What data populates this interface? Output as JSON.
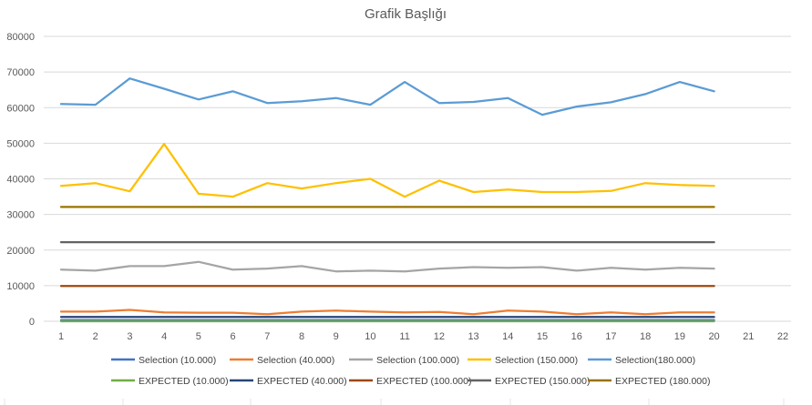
{
  "chart_data": {
    "type": "line",
    "title": "Grafik Başlığı",
    "xlabel": "",
    "ylabel": "",
    "x": [
      1,
      2,
      3,
      4,
      5,
      6,
      7,
      8,
      9,
      10,
      11,
      12,
      13,
      14,
      15,
      16,
      17,
      18,
      19,
      20
    ],
    "x_ticks": [
      1,
      2,
      3,
      4,
      5,
      6,
      7,
      8,
      9,
      10,
      11,
      12,
      13,
      14,
      15,
      16,
      17,
      18,
      19,
      20,
      21,
      22
    ],
    "xlim": [
      1,
      22
    ],
    "ylim": [
      0,
      80000
    ],
    "y_ticks": [
      0,
      10000,
      20000,
      30000,
      40000,
      50000,
      60000,
      70000,
      80000
    ],
    "grid": true,
    "legend_position": "bottom",
    "series": [
      {
        "name": "Selection (10.000)",
        "color": "#4472C4",
        "values": [
          300,
          300,
          300,
          300,
          300,
          300,
          300,
          300,
          300,
          300,
          300,
          300,
          300,
          300,
          300,
          300,
          300,
          300,
          300,
          300
        ]
      },
      {
        "name": "Selection (40.000)",
        "color": "#ED7D31",
        "values": [
          2700,
          2700,
          3200,
          2500,
          2400,
          2400,
          2000,
          2700,
          3000,
          2700,
          2500,
          2600,
          2000,
          3000,
          2700,
          2000,
          2500,
          2000,
          2500,
          2500
        ]
      },
      {
        "name": "Selection (100.000)",
        "color": "#A5A5A5",
        "values": [
          14500,
          14200,
          15500,
          15500,
          16700,
          14500,
          14800,
          15500,
          14000,
          14200,
          14000,
          14800,
          15200,
          15000,
          15200,
          14200,
          15000,
          14500,
          15000,
          14800
        ]
      },
      {
        "name": "Selection (150.000)",
        "color": "#FFC000",
        "values": [
          38000,
          38800,
          36500,
          49800,
          35800,
          35000,
          38800,
          37300,
          38800,
          40000,
          35000,
          39500,
          36300,
          37000,
          36300,
          36300,
          36600,
          38800,
          38300,
          38000
        ]
      },
      {
        "name": "Selection(180.000)",
        "color": "#5B9BD5",
        "values": [
          61000,
          60800,
          68200,
          65300,
          62300,
          64600,
          61300,
          61800,
          62700,
          60800,
          67200,
          61300,
          61600,
          62700,
          58000,
          60300,
          61500,
          63800,
          67200,
          64600
        ]
      },
      {
        "name": "EXPECTED (10.000)",
        "color": "#70AD47",
        "values": [
          0,
          0,
          0,
          0,
          0,
          0,
          0,
          0,
          0,
          0,
          0,
          0,
          0,
          0,
          0,
          0,
          0,
          0,
          0,
          0
        ]
      },
      {
        "name": "EXPECTED (40.000)",
        "color": "#264478",
        "values": [
          1200,
          1200,
          1200,
          1200,
          1200,
          1200,
          1200,
          1200,
          1200,
          1200,
          1200,
          1200,
          1200,
          1200,
          1200,
          1200,
          1200,
          1200,
          1200,
          1200
        ]
      },
      {
        "name": "EXPECTED (100.000)",
        "color": "#9E480E",
        "values": [
          9900,
          9900,
          9900,
          9900,
          9900,
          9900,
          9900,
          9900,
          9900,
          9900,
          9900,
          9900,
          9900,
          9900,
          9900,
          9900,
          9900,
          9900,
          9900,
          9900
        ]
      },
      {
        "name": "EXPECTED (150.000)",
        "color": "#636363",
        "values": [
          22200,
          22200,
          22200,
          22200,
          22200,
          22200,
          22200,
          22200,
          22200,
          22200,
          22200,
          22200,
          22200,
          22200,
          22200,
          22200,
          22200,
          22200,
          22200,
          22200
        ]
      },
      {
        "name": "EXPECTED (180.000)",
        "color": "#997300",
        "values": [
          32100,
          32100,
          32100,
          32100,
          32100,
          32100,
          32100,
          32100,
          32100,
          32100,
          32100,
          32100,
          32100,
          32100,
          32100,
          32100,
          32100,
          32100,
          32100,
          32100
        ]
      }
    ]
  }
}
